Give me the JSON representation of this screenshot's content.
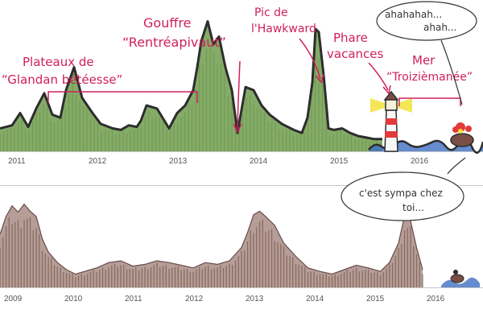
{
  "colors": {
    "annotation": "#d0205b",
    "panel_border": "#c9c9c9",
    "bar": "#7a6a5a",
    "terrain_green": "#6e9e4e",
    "terrain_brown": "#7a4e44",
    "terrain_outline": "#2d2d2d",
    "sea": "#3d6fc2"
  },
  "chart_data": [
    {
      "type": "area",
      "x_ticks": [
        "2011",
        "2012",
        "2013",
        "2014",
        "2015",
        "2016"
      ],
      "xlim": [
        2010.8,
        2016.8
      ],
      "series": [
        {
          "x": [
            2010.8,
            2010.95,
            2011.05,
            2011.15,
            2011.25,
            2011.35,
            2011.45,
            2011.55,
            2011.62,
            2011.72,
            2011.82,
            2011.95,
            2012.05,
            2012.2,
            2012.3,
            2012.4,
            2012.5,
            2012.55,
            2012.62,
            2012.75,
            2012.9,
            2013.0,
            2013.1,
            2013.2,
            2013.25,
            2013.3,
            2013.38,
            2013.45,
            2013.52,
            2013.6,
            2013.68,
            2013.75,
            2013.85,
            2013.95,
            2014.05,
            2014.15,
            2014.3,
            2014.45,
            2014.55,
            2014.62,
            2014.68,
            2014.72,
            2014.76,
            2014.82,
            2014.88,
            2014.95,
            2015.05,
            2015.15,
            2015.25,
            2015.35,
            2015.45,
            2015.55
          ],
          "values": [
            0.15,
            0.17,
            0.25,
            0.16,
            0.28,
            0.38,
            0.24,
            0.22,
            0.4,
            0.55,
            0.35,
            0.25,
            0.18,
            0.15,
            0.14,
            0.17,
            0.16,
            0.2,
            0.3,
            0.28,
            0.15,
            0.25,
            0.3,
            0.4,
            0.55,
            0.72,
            0.85,
            0.7,
            0.75,
            0.55,
            0.4,
            0.12,
            0.42,
            0.4,
            0.3,
            0.24,
            0.18,
            0.14,
            0.12,
            0.22,
            0.45,
            0.8,
            0.78,
            0.5,
            0.15,
            0.14,
            0.15,
            0.12,
            0.1,
            0.09,
            0.08,
            0.08
          ]
        }
      ],
      "annotations": [
        {
          "lines": [
            "Plateaux de",
            "“Glandan bétéesse”"
          ]
        },
        {
          "lines": [
            "Gouffre",
            "“Rentréapivaut”"
          ]
        },
        {
          "lines": [
            "Pic de",
            "l'Hawkward"
          ]
        },
        {
          "lines": [
            "Phare",
            "vacances"
          ]
        },
        {
          "lines": [
            "Mer",
            "“Troizièmanée”"
          ]
        }
      ]
    },
    {
      "type": "area",
      "x_ticks": [
        "2009",
        "2010",
        "2011",
        "2012",
        "2013",
        "2014",
        "2015",
        "2016"
      ],
      "xlim": [
        2008.8,
        2016.8
      ],
      "series": [
        {
          "x": [
            2008.8,
            2008.9,
            2009.0,
            2009.1,
            2009.2,
            2009.3,
            2009.4,
            2009.5,
            2009.6,
            2009.75,
            2009.9,
            2010.05,
            2010.2,
            2010.4,
            2010.6,
            2010.8,
            2011.0,
            2011.2,
            2011.4,
            2011.6,
            2011.8,
            2012.0,
            2012.2,
            2012.4,
            2012.6,
            2012.8,
            2012.9,
            2013.0,
            2013.1,
            2013.2,
            2013.35,
            2013.5,
            2013.7,
            2013.9,
            2014.1,
            2014.3,
            2014.5,
            2014.7,
            2014.9,
            2015.1,
            2015.25,
            2015.4,
            2015.5,
            2015.6,
            2015.7,
            2015.8
          ],
          "values": [
            0.6,
            0.8,
            0.92,
            0.85,
            0.94,
            0.86,
            0.8,
            0.55,
            0.4,
            0.28,
            0.2,
            0.15,
            0.18,
            0.22,
            0.28,
            0.3,
            0.24,
            0.26,
            0.3,
            0.28,
            0.25,
            0.22,
            0.28,
            0.26,
            0.3,
            0.45,
            0.62,
            0.82,
            0.86,
            0.8,
            0.7,
            0.5,
            0.35,
            0.22,
            0.18,
            0.15,
            0.2,
            0.25,
            0.22,
            0.18,
            0.28,
            0.5,
            0.8,
            0.75,
            0.45,
            0.2
          ]
        }
      ]
    }
  ],
  "speech_bubble_top": {
    "lines": [
      "ahahahah...",
      "ahah..."
    ]
  },
  "speech_bubble_bottom": {
    "lines": [
      "c'est sympa chez",
      "toi..."
    ]
  }
}
